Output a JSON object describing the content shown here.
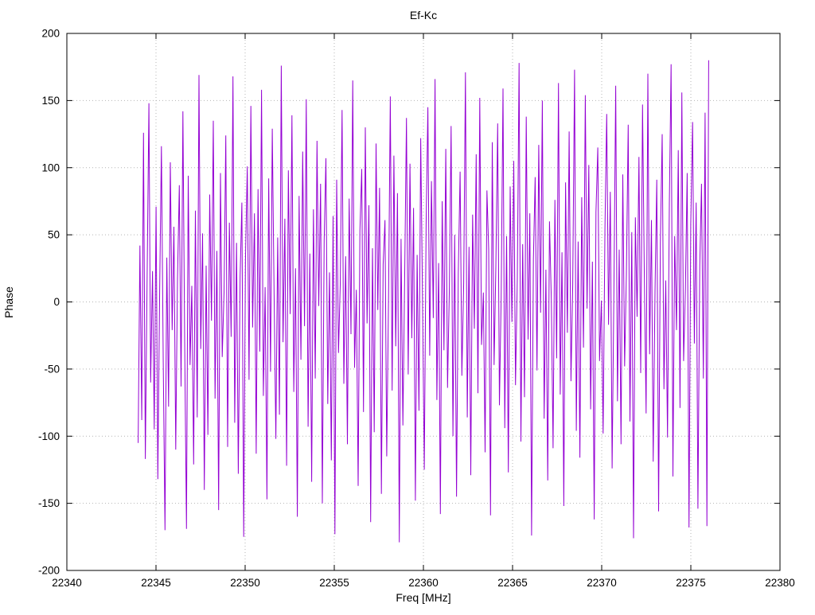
{
  "title": "Ef-Kc",
  "chart_data": {
    "type": "line",
    "title": "Ef-Kc",
    "xlabel": "Freq [MHz]",
    "ylabel": "Phase",
    "xlim": [
      22340,
      22380
    ],
    "ylim": [
      -200,
      200
    ],
    "x_ticks": [
      22340,
      22345,
      22350,
      22355,
      22360,
      22365,
      22370,
      22375,
      22380
    ],
    "y_ticks": [
      -200,
      -150,
      -100,
      -50,
      0,
      50,
      100,
      150,
      200
    ],
    "grid": true,
    "legend": "none",
    "line_color": "#9400d3",
    "grid_color": "#b4b4b4",
    "border_color": "#000000",
    "x_start": 22344.0,
    "x_end": 22376.0,
    "y_values": [
      -105,
      42,
      -88,
      126,
      -117,
      15,
      148,
      -60,
      23,
      -95,
      71,
      -132,
      8,
      116,
      -45,
      -170,
      33,
      -78,
      104,
      -21,
      56,
      -110,
      17,
      87,
      -63,
      142,
      -29,
      -169,
      94,
      -47,
      12,
      -121,
      68,
      -86,
      169,
      -35,
      51,
      -140,
      27,
      -99,
      80,
      -14,
      135,
      -72,
      38,
      -155,
      96,
      -41,
      7,
      124,
      -108,
      59,
      -26,
      168,
      -90,
      44,
      -128,
      19,
      74,
      -175,
      31,
      101,
      -58,
      146,
      -19,
      66,
      -113,
      84,
      -37,
      158,
      -70,
      11,
      -147,
      92,
      -52,
      129,
      5,
      -102,
      48,
      -84,
      176,
      -30,
      62,
      -122,
      98,
      -9,
      139,
      -67,
      25,
      -160,
      79,
      -43,
      112,
      -18,
      151,
      -93,
      36,
      -134,
      69,
      -57,
      120,
      -3,
      88,
      -150,
      46,
      107,
      -76,
      22,
      -118,
      64,
      -173,
      91,
      -38,
      13,
      143,
      -61,
      34,
      -106,
      77,
      -24,
      165,
      -49,
      9,
      -137,
      53,
      99,
      -82,
      130,
      -16,
      72,
      -164,
      40,
      -97,
      118,
      -6,
      85,
      -143,
      28,
      61,
      -115,
      3,
      153,
      -66,
      109,
      -33,
      81,
      -179,
      47,
      -92,
      16,
      137,
      -54,
      103,
      -27,
      70,
      -148,
      35,
      -81,
      122,
      0,
      -125,
      58,
      145,
      -40,
      90,
      -12,
      166,
      -73,
      29,
      -158,
      75,
      -36,
      114,
      -64,
      10,
      131,
      -100,
      50,
      -145,
      21,
      97,
      -55,
      14,
      171,
      -86,
      41,
      -129,
      65,
      -20,
      110,
      -68,
      152,
      -32,
      7,
      -112,
      83,
      39,
      -159,
      119,
      -47,
      26,
      133,
      -77,
      4,
      159,
      -94,
      49,
      -127,
      86,
      -15,
      105,
      -62,
      18,
      178,
      -104,
      43,
      -71,
      138,
      -28,
      66,
      -174,
      32,
      93,
      -51,
      117,
      -8,
      150,
      -87,
      24,
      -133,
      60,
      2,
      -109,
      76,
      -42,
      163,
      -69,
      37,
      -152,
      89,
      -23,
      127,
      -59,
      13,
      173,
      -96,
      45,
      -116,
      78,
      -34,
      154,
      -5,
      102,
      -80,
      30,
      -162,
      67,
      115,
      -44,
      1,
      -98,
      55,
      140,
      -17,
      82,
      -124,
      6,
      161,
      -74,
      39,
      -106,
      95,
      -48,
      20,
      132,
      -89,
      52,
      -176,
      63,
      -11,
      108,
      -53,
      147,
      23,
      -83,
      170,
      -39,
      61,
      -119,
      8,
      91,
      -156,
      44,
      125,
      -65,
      16,
      -101,
      73,
      177,
      -130,
      49,
      -21,
      113,
      -79,
      156,
      -44,
      10,
      96,
      -168,
      58,
      134,
      -31,
      74,
      -154,
      27,
      88,
      -57,
      141,
      -167,
      180
    ]
  }
}
